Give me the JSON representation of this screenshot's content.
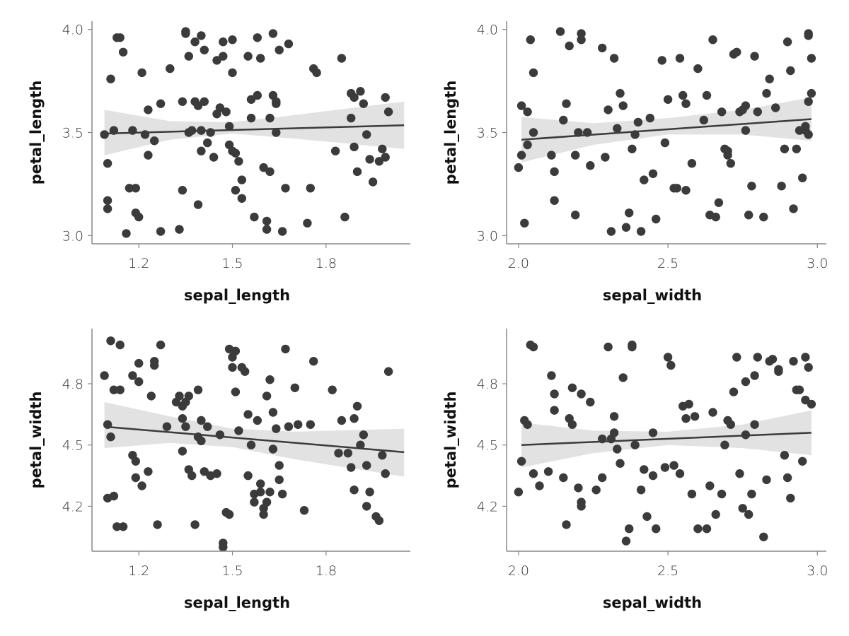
{
  "colors": {
    "points": "#3b3b3b",
    "band": "#e2e2e2",
    "line": "#3b3b3b",
    "axis": "#888888"
  },
  "chart_data": [
    {
      "type": "scatter",
      "title": "",
      "xlabel": "sepal_length",
      "ylabel": "petal_length",
      "xlim": [
        1.05,
        2.07
      ],
      "ylim": [
        2.96,
        4.04
      ],
      "xticks": [
        1.2,
        1.5,
        1.8
      ],
      "xtick_labels": [
        "1.2",
        "1.5",
        "1.8"
      ],
      "yticks": [
        3.0,
        3.5,
        4.0
      ],
      "ytick_labels": [
        "3.0",
        "3.5",
        "4.0"
      ],
      "regression": {
        "x": [
          1.09,
          2.05
        ],
        "y": [
          3.495,
          3.535
        ]
      },
      "ci_band": {
        "x": [
          1.09,
          1.3,
          1.5,
          1.7,
          2.05
        ],
        "lower": [
          3.39,
          3.465,
          3.495,
          3.47,
          3.42
        ],
        "upper": [
          3.61,
          3.555,
          3.55,
          3.585,
          3.65
        ]
      },
      "x": [
        1.09,
        1.1,
        1.1,
        1.1,
        1.11,
        1.12,
        1.13,
        1.14,
        1.15,
        1.16,
        1.17,
        1.18,
        1.19,
        1.19,
        1.2,
        1.21,
        1.22,
        1.23,
        1.23,
        1.25,
        1.27,
        1.27,
        1.3,
        1.33,
        1.34,
        1.34,
        1.35,
        1.35,
        1.36,
        1.36,
        1.37,
        1.38,
        1.38,
        1.39,
        1.39,
        1.4,
        1.4,
        1.4,
        1.41,
        1.41,
        1.42,
        1.43,
        1.44,
        1.45,
        1.45,
        1.46,
        1.47,
        1.47,
        1.48,
        1.49,
        1.49,
        1.5,
        1.5,
        1.5,
        1.51,
        1.51,
        1.52,
        1.53,
        1.53,
        1.55,
        1.56,
        1.56,
        1.57,
        1.58,
        1.58,
        1.59,
        1.6,
        1.61,
        1.61,
        1.62,
        1.62,
        1.63,
        1.63,
        1.64,
        1.64,
        1.64,
        1.65,
        1.66,
        1.67,
        1.68,
        1.74,
        1.75,
        1.76,
        1.77,
        1.83,
        1.85,
        1.86,
        1.88,
        1.88,
        1.89,
        1.89,
        1.9,
        1.91,
        1.92,
        1.93,
        1.94,
        1.95,
        1.97,
        1.98,
        1.99,
        1.99,
        2.0
      ],
      "y": [
        3.49,
        3.17,
        3.13,
        3.35,
        3.76,
        3.51,
        3.96,
        3.96,
        3.89,
        3.01,
        3.23,
        3.51,
        3.11,
        3.23,
        3.09,
        3.79,
        3.49,
        3.39,
        3.61,
        3.46,
        3.64,
        3.02,
        3.81,
        3.03,
        3.22,
        3.65,
        3.98,
        3.99,
        3.5,
        3.87,
        3.51,
        3.65,
        3.94,
        3.15,
        3.63,
        3.51,
        3.41,
        3.97,
        3.9,
        3.65,
        3.45,
        3.5,
        3.38,
        3.59,
        3.85,
        3.62,
        3.94,
        3.87,
        3.6,
        3.53,
        3.44,
        3.95,
        3.79,
        3.41,
        3.22,
        3.4,
        3.36,
        3.18,
        3.27,
        3.87,
        3.66,
        3.57,
        3.09,
        3.96,
        3.68,
        3.86,
        3.33,
        3.07,
        3.03,
        3.57,
        3.31,
        3.98,
        3.68,
        3.5,
        3.65,
        3.64,
        3.9,
        3.02,
        3.23,
        3.93,
        3.06,
        3.23,
        3.81,
        3.79,
        3.41,
        3.86,
        3.09,
        3.57,
        3.69,
        3.43,
        3.67,
        3.31,
        3.7,
        3.64,
        3.49,
        3.37,
        3.26,
        3.36,
        3.42,
        3.67,
        3.38,
        3.6
      ]
    },
    {
      "type": "scatter",
      "title": "",
      "xlabel": "sepal_width",
      "ylabel": "petal_length",
      "xlim": [
        1.96,
        3.03
      ],
      "ylim": [
        2.96,
        4.04
      ],
      "xticks": [
        2.0,
        2.5,
        3.0
      ],
      "xtick_labels": [
        "2.0",
        "2.5",
        "3.0"
      ],
      "yticks": [
        3.0,
        3.5,
        4.0
      ],
      "ytick_labels": [
        "3.0",
        "3.5",
        "4.0"
      ],
      "regression": {
        "x": [
          2.01,
          2.98
        ],
        "y": [
          3.465,
          3.565
        ]
      },
      "ci_band": {
        "x": [
          2.01,
          2.25,
          2.5,
          2.75,
          2.98
        ],
        "lower": [
          3.355,
          3.44,
          3.49,
          3.49,
          3.46
        ],
        "upper": [
          3.575,
          3.545,
          3.57,
          3.61,
          3.67
        ]
      },
      "x": [
        2.0,
        2.01,
        2.01,
        2.02,
        2.03,
        2.03,
        2.04,
        2.05,
        2.05,
        2.11,
        2.12,
        2.12,
        2.14,
        2.15,
        2.16,
        2.17,
        2.19,
        2.19,
        2.2,
        2.21,
        2.21,
        2.23,
        2.24,
        2.28,
        2.29,
        2.3,
        2.31,
        2.32,
        2.33,
        2.34,
        2.35,
        2.36,
        2.37,
        2.38,
        2.39,
        2.4,
        2.41,
        2.42,
        2.44,
        2.45,
        2.46,
        2.48,
        2.49,
        2.5,
        2.52,
        2.53,
        2.54,
        2.55,
        2.56,
        2.56,
        2.58,
        2.6,
        2.62,
        2.63,
        2.64,
        2.65,
        2.66,
        2.67,
        2.68,
        2.69,
        2.7,
        2.7,
        2.71,
        2.72,
        2.73,
        2.74,
        2.75,
        2.76,
        2.76,
        2.77,
        2.78,
        2.79,
        2.8,
        2.82,
        2.83,
        2.84,
        2.86,
        2.88,
        2.89,
        2.9,
        2.91,
        2.92,
        2.93,
        2.94,
        2.95,
        2.96,
        2.97,
        2.97,
        2.97,
        2.98
      ],
      "y": [
        3.33,
        3.63,
        3.39,
        3.06,
        3.6,
        3.44,
        3.95,
        3.79,
        3.5,
        3.39,
        3.31,
        3.17,
        3.99,
        3.56,
        3.64,
        3.92,
        3.39,
        3.1,
        3.5,
        3.98,
        3.95,
        3.5,
        3.34,
        3.91,
        3.38,
        3.61,
        3.02,
        3.86,
        3.52,
        3.69,
        3.63,
        3.04,
        3.11,
        3.42,
        3.49,
        3.55,
        3.02,
        3.27,
        3.57,
        3.3,
        3.08,
        3.85,
        3.45,
        3.66,
        3.23,
        3.23,
        3.86,
        3.68,
        3.22,
        3.64,
        3.35,
        3.81,
        3.56,
        3.68,
        3.1,
        3.95,
        3.09,
        3.16,
        3.6,
        3.42,
        3.39,
        3.41,
        3.35,
        3.88,
        3.89,
        3.6,
        3.61,
        3.63,
        3.51,
        3.1,
        3.24,
        3.87,
        3.6,
        3.09,
        3.69,
        3.76,
        3.62,
        3.24,
        3.42,
        3.94,
        3.8,
        3.13,
        3.42,
        3.51,
        3.28,
        3.51,
        3.65,
        3.98,
        3.97,
        3.86
      ],
      "extra_points": {
        "x": [
          2.96,
          2.97,
          2.98
        ],
        "y": [
          3.53,
          3.49,
          3.69
        ]
      }
    },
    {
      "type": "scatter",
      "title": "",
      "xlabel": "sepal_length",
      "ylabel": "petal_width",
      "xlim": [
        1.05,
        2.07
      ],
      "ylim": [
        3.98,
        5.07
      ],
      "xticks": [
        1.2,
        1.5,
        1.8
      ],
      "xtick_labels": [
        "1.2",
        "1.5",
        "1.8"
      ],
      "yticks": [
        4.2,
        4.5,
        4.8
      ],
      "ytick_labels": [
        "4.2",
        "4.5",
        "4.8"
      ],
      "regression": {
        "x": [
          1.09,
          2.05
        ],
        "y": [
          4.59,
          4.465
        ]
      },
      "ci_band": {
        "x": [
          1.09,
          1.3,
          1.5,
          1.7,
          2.05
        ],
        "lower": [
          4.485,
          4.51,
          4.49,
          4.43,
          4.345
        ]
      },
      "ci_upper": [
        4.71,
        4.64,
        4.58,
        4.565,
        4.58
      ],
      "x": [
        1.09,
        1.1,
        1.1,
        1.11,
        1.11,
        1.12,
        1.12,
        1.13,
        1.14,
        1.14,
        1.15,
        1.18,
        1.18,
        1.19,
        1.19,
        1.2,
        1.2,
        1.21,
        1.23,
        1.24,
        1.25,
        1.25,
        1.26,
        1.27,
        1.29,
        1.32,
        1.33,
        1.34,
        1.34,
        1.34,
        1.35,
        1.35,
        1.36,
        1.36,
        1.37,
        1.38,
        1.39,
        1.39,
        1.4,
        1.4,
        1.41,
        1.42,
        1.43,
        1.45,
        1.46,
        1.47,
        1.47,
        1.48,
        1.49,
        1.49,
        1.5,
        1.5,
        1.51,
        1.51,
        1.52,
        1.53,
        1.54,
        1.55,
        1.55,
        1.56,
        1.57,
        1.57,
        1.58,
        1.59,
        1.59,
        1.6,
        1.6,
        1.61,
        1.61,
        1.62,
        1.62,
        1.63,
        1.63,
        1.64,
        1.65,
        1.65,
        1.66,
        1.67,
        1.68,
        1.7,
        1.71,
        1.73,
        1.75,
        1.76,
        1.82,
        1.84,
        1.85,
        1.87,
        1.88,
        1.89,
        1.89,
        1.9,
        1.91,
        1.92,
        1.93,
        1.93,
        1.94,
        1.96,
        1.97,
        1.98,
        1.99,
        2.0
      ],
      "y": [
        4.84,
        4.24,
        4.6,
        4.54,
        5.01,
        4.25,
        4.77,
        4.1,
        4.77,
        4.99,
        4.1,
        4.84,
        4.45,
        4.42,
        4.34,
        4.9,
        4.81,
        4.3,
        4.37,
        4.74,
        4.91,
        4.89,
        4.11,
        4.99,
        4.59,
        4.71,
        4.74,
        4.47,
        4.63,
        4.69,
        4.71,
        4.59,
        4.38,
        4.74,
        4.35,
        4.11,
        4.77,
        4.54,
        4.52,
        4.62,
        4.37,
        4.59,
        4.35,
        4.36,
        4.55,
        4.0,
        4.02,
        4.17,
        4.97,
        4.16,
        4.88,
        4.93,
        4.76,
        4.96,
        4.57,
        4.88,
        4.86,
        4.65,
        4.35,
        4.5,
        4.22,
        4.26,
        4.62,
        4.31,
        4.27,
        4.19,
        4.16,
        4.22,
        4.74,
        4.82,
        4.27,
        4.66,
        4.48,
        4.58,
        4.4,
        4.33,
        4.26,
        4.97,
        4.59,
        4.78,
        4.6,
        4.18,
        4.6,
        4.91,
        4.77,
        4.46,
        4.62,
        4.46,
        4.39,
        4.63,
        4.28,
        4.69,
        4.5,
        4.55,
        4.2,
        4.4,
        4.27,
        4.15,
        4.13,
        4.45,
        4.36,
        4.86
      ]
    },
    {
      "type": "scatter",
      "title": "",
      "xlabel": "sepal_width",
      "ylabel": "petal_width",
      "xlim": [
        1.96,
        3.03
      ],
      "ylim": [
        3.98,
        5.07
      ],
      "xticks": [
        2.0,
        2.5,
        3.0
      ],
      "xtick_labels": [
        "2.0",
        "2.5",
        "3.0"
      ],
      "yticks": [
        4.2,
        4.5,
        4.8
      ],
      "ytick_labels": [
        "4.2",
        "4.5",
        "4.8"
      ],
      "regression": {
        "x": [
          2.01,
          2.98
        ],
        "y": [
          4.5,
          4.56
        ]
      },
      "ci_band": {
        "x": [
          2.01,
          2.25,
          2.5,
          2.75,
          2.98
        ],
        "lower": [
          4.39,
          4.46,
          4.5,
          4.485,
          4.45
        ]
      },
      "ci_upper": [
        4.61,
        4.57,
        4.565,
        4.6,
        4.67
      ],
      "x": [
        2.0,
        2.01,
        2.02,
        2.03,
        2.04,
        2.05,
        2.05,
        2.07,
        2.1,
        2.11,
        2.12,
        2.12,
        2.15,
        2.16,
        2.17,
        2.18,
        2.18,
        2.2,
        2.21,
        2.21,
        2.21,
        2.24,
        2.26,
        2.28,
        2.28,
        2.3,
        2.31,
        2.32,
        2.32,
        2.33,
        2.34,
        2.35,
        2.36,
        2.37,
        2.38,
        2.38,
        2.39,
        2.41,
        2.42,
        2.43,
        2.45,
        2.45,
        2.46,
        2.49,
        2.5,
        2.51,
        2.52,
        2.54,
        2.55,
        2.56,
        2.57,
        2.58,
        2.59,
        2.6,
        2.63,
        2.64,
        2.65,
        2.66,
        2.68,
        2.69,
        2.7,
        2.71,
        2.72,
        2.73,
        2.74,
        2.75,
        2.76,
        2.76,
        2.77,
        2.78,
        2.79,
        2.79,
        2.8,
        2.82,
        2.83,
        2.84,
        2.85,
        2.87,
        2.87,
        2.89,
        2.9,
        2.91,
        2.92,
        2.93,
        2.94,
        2.95,
        2.96,
        2.96,
        2.97,
        2.98
      ],
      "y": [
        4.27,
        4.42,
        4.62,
        4.6,
        4.99,
        4.98,
        4.36,
        4.3,
        4.37,
        4.84,
        4.75,
        4.67,
        4.34,
        4.11,
        4.63,
        4.78,
        4.6,
        4.29,
        4.22,
        4.2,
        4.75,
        4.71,
        4.28,
        4.53,
        4.34,
        4.98,
        4.53,
        4.56,
        4.64,
        4.48,
        4.41,
        4.83,
        4.03,
        4.09,
        4.99,
        4.98,
        4.5,
        4.28,
        4.38,
        4.15,
        4.35,
        4.56,
        4.09,
        4.39,
        4.93,
        4.89,
        4.4,
        4.36,
        4.69,
        4.63,
        4.7,
        4.26,
        4.64,
        4.09,
        4.09,
        4.3,
        4.66,
        4.16,
        4.26,
        4.5,
        4.62,
        4.6,
        4.76,
        4.93,
        4.36,
        4.19,
        4.81,
        4.55,
        4.16,
        4.26,
        4.6,
        4.84,
        4.93,
        4.05,
        4.33,
        4.91,
        4.92,
        4.86,
        4.87,
        4.45,
        4.34,
        4.24,
        4.91,
        4.77,
        4.77,
        4.42,
        4.72,
        4.93,
        4.88,
        4.7
      ]
    }
  ]
}
